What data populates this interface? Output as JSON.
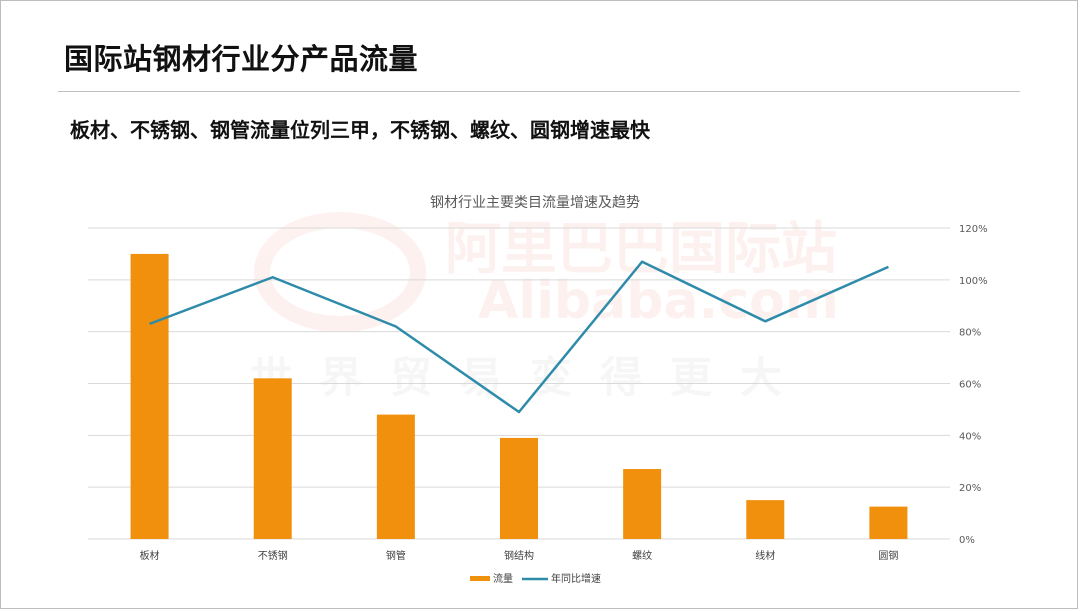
{
  "slide": {
    "title": "国际站钢材行业分产品流量",
    "subtitle": "板材、不锈钢、钢管流量位列三甲，不锈钢、螺纹、圆钢增速最快"
  },
  "watermark": {
    "line1": "阿里巴巴国际站",
    "line2": "Alibaba.com",
    "line3": "世界贸易变得更大"
  },
  "colors": {
    "bar": "#F0900C",
    "line": "#2E8BAA",
    "grid": "#D9D9D9",
    "text": "#595959"
  },
  "chart_data": {
    "type": "bar",
    "title": "钢材行业主要类目流量增速及趋势",
    "categories": [
      "板材",
      "不锈钢",
      "钢管",
      "钢结构",
      "螺纹",
      "线材",
      "圆钢"
    ],
    "series": [
      {
        "name": "流量",
        "type": "bar",
        "axis": "left",
        "values": [
          110,
          62,
          48,
          39,
          27,
          15,
          12.5
        ]
      },
      {
        "name": "年同比增速",
        "type": "line",
        "axis": "right",
        "values": [
          83,
          101,
          82,
          49,
          107,
          84,
          105
        ]
      }
    ],
    "y_left": {
      "min": 0,
      "max": 120,
      "visible": false
    },
    "y_right": {
      "min": 0,
      "max": 120,
      "ticks": [
        0,
        20,
        40,
        60,
        80,
        100,
        120
      ],
      "tick_labels": [
        "0%",
        "20%",
        "40%",
        "60%",
        "80%",
        "100%",
        "120%"
      ]
    },
    "grid": true,
    "legend_position": "bottom"
  }
}
